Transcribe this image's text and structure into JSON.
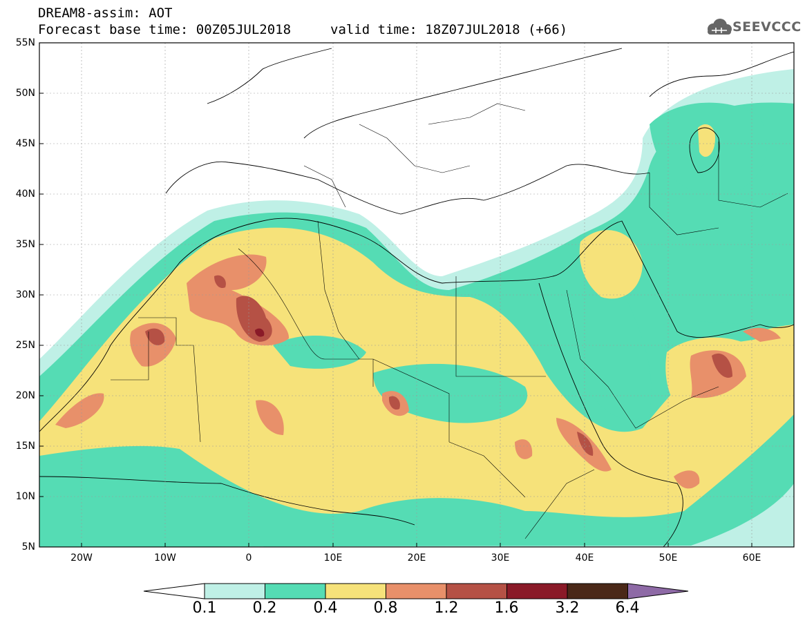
{
  "header": {
    "title": "DREAM8-assim: AOT",
    "base_time": "Forecast base time: 00Z05JUL2018",
    "valid_time": "valid time: 18Z07JUL2018 (+66)",
    "logo_text": "SEEVCCC"
  },
  "map": {
    "projection": "lat-lon",
    "lon_range": [
      -25,
      65
    ],
    "lat_range": [
      5,
      55
    ],
    "lat_labels": [
      "55N",
      "50N",
      "45N",
      "40N",
      "35N",
      "30N",
      "25N",
      "20N",
      "15N",
      "10N",
      "5N"
    ],
    "lon_labels": [
      "20W",
      "10W",
      "0",
      "10E",
      "20E",
      "30E",
      "40E",
      "50E",
      "60E"
    ],
    "variable": "AOT",
    "level_colors": {
      "0.1": "#bff0e6",
      "0.2": "#55dcb4",
      "0.4": "#f6e27a",
      "0.8": "#e8906a",
      "1.2": "#b55145",
      "1.6": "#8a1a28",
      "3.2": "#4a2818",
      "6.4": "#8e6aa6"
    }
  },
  "colorbar": {
    "labels": [
      "0.1",
      "0.2",
      "0.4",
      "0.8",
      "1.2",
      "1.6",
      "3.2",
      "6.4"
    ],
    "colors": [
      "#ffffff",
      "#bff0e6",
      "#55dcb4",
      "#f6e27a",
      "#e8906a",
      "#b55145",
      "#8a1a28",
      "#4a2818",
      "#8e6aa6"
    ]
  }
}
